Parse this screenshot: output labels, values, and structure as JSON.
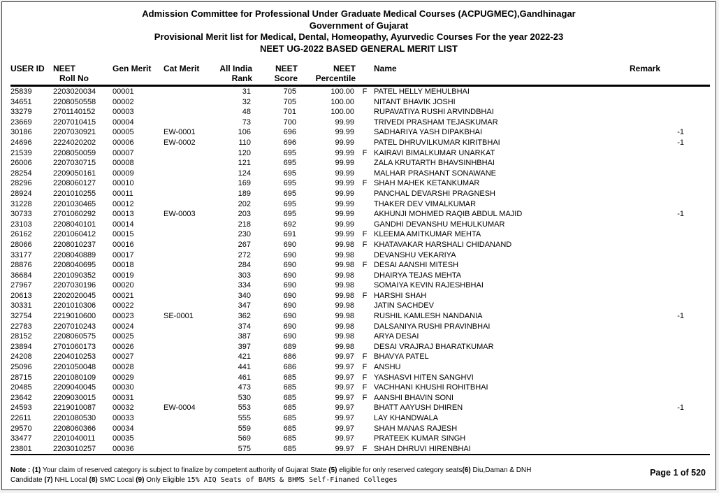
{
  "colors": {
    "text": "#000000",
    "background": "#ffffff",
    "page_border": "#3a3a3a",
    "rule": "#000000"
  },
  "page": {
    "titles": [
      "Admission Committee for Professional Under Graduate Medical Courses (ACPUGMEC),Gandhinagar",
      "Government of Gujarat",
      "Provisional Merit list for Medical, Dental, Homeopathy, Ayurvedic Courses For the year 2022-23",
      "NEET UG-2022 BASED GENERAL MERIT LIST"
    ],
    "footer": {
      "page_label": "Page 1 of 520",
      "note_lines": [
        [
          {
            "t": "Note : ",
            "s": "b"
          },
          {
            "t": "(1)",
            "s": "b"
          },
          {
            "t": " Your claim of reserved category is subject to finalize by competent authority of Gujarat State  ",
            "s": ""
          },
          {
            "t": "(5)",
            "s": "b"
          },
          {
            "t": " eligible for only reserved category seats",
            "s": ""
          },
          {
            "t": "(6)",
            "s": "b"
          },
          {
            "t": " Diu,Daman & DNH",
            "s": ""
          }
        ],
        [
          {
            "t": "Candidate ",
            "s": ""
          },
          {
            "t": "(7)",
            "s": "b"
          },
          {
            "t": " NHL Local ",
            "s": ""
          },
          {
            "t": "(8)",
            "s": "b"
          },
          {
            "t": " SMC Local ",
            "s": ""
          },
          {
            "t": "(9)",
            "s": "b"
          },
          {
            "t": " Only Eligible ",
            "s": ""
          },
          {
            "t": "15% AIQ Seats of BAMS & BHMS Self-Finaned Colleges",
            "s": "m"
          }
        ]
      ]
    }
  },
  "table": {
    "headers": [
      {
        "l1": "USER ID",
        "l2": ""
      },
      {
        "l1": "NEET",
        "l2": "Roll No"
      },
      {
        "l1": "Gen Merit",
        "l2": ""
      },
      {
        "l1": "Cat Merit",
        "l2": ""
      },
      {
        "l1": "All India",
        "l2": "Rank"
      },
      {
        "l1": "NEET",
        "l2": "Score"
      },
      {
        "l1": "NEET",
        "l2": "Percentile"
      },
      {
        "l1": "",
        "l2": ""
      },
      {
        "l1": "Name",
        "l2": ""
      },
      {
        "l1": "Remark",
        "l2": ""
      }
    ],
    "rows": [
      [
        "25839",
        "2203020034",
        "00001",
        "",
        "31",
        "705",
        "100.00",
        "F",
        "PATEL HELLY MEHULBHAI",
        ""
      ],
      [
        "34651",
        "2208050558",
        "00002",
        "",
        "32",
        "705",
        "100.00",
        "",
        "NITANT BHAVIK JOSHI",
        ""
      ],
      [
        "33279",
        "2701140152",
        "00003",
        "",
        "48",
        "701",
        "100.00",
        "",
        "RUPAVATIYA  RUSHI ARVINDBHAI",
        ""
      ],
      [
        "23669",
        "2207010415",
        "00004",
        "",
        "73",
        "700",
        "99.99",
        "",
        "TRIVEDI PRASHAM TEJASKUMAR",
        ""
      ],
      [
        "30186",
        "2207030921",
        "00005",
        "EW-0001",
        "106",
        "696",
        "99.99",
        "",
        "SADHARIYA YASH DIPAKBHAI",
        "-1"
      ],
      [
        "24696",
        "2224020202",
        "00006",
        "EW-0002",
        "110",
        "696",
        "99.99",
        "",
        "PATEL DHRUVILKUMAR KIRITBHAI",
        "-1"
      ],
      [
        "21539",
        "2208050059",
        "00007",
        "",
        "120",
        "695",
        "99.99",
        "F",
        "KAIRAVI BIMALKUMAR UNARKAT",
        ""
      ],
      [
        "26006",
        "2207030715",
        "00008",
        "",
        "121",
        "695",
        "99.99",
        "",
        "ZALA KRUTARTH BHAVSINHBHAI",
        ""
      ],
      [
        "28254",
        "2209050161",
        "00009",
        "",
        "124",
        "695",
        "99.99",
        "",
        "MALHAR PRASHANT SONAWANE",
        ""
      ],
      [
        "28296",
        "2208060127",
        "00010",
        "",
        "169",
        "695",
        "99.99",
        "F",
        "SHAH MAHEK KETANKUMAR",
        ""
      ],
      [
        "28924",
        "2201010255",
        "00011",
        "",
        "189",
        "695",
        "99.99",
        "",
        "PANCHAL DEVARSHI PRAGNESH",
        ""
      ],
      [
        "31228",
        "2201030465",
        "00012",
        "",
        "202",
        "695",
        "99.99",
        "",
        "THAKER DEV VIMALKUMAR",
        ""
      ],
      [
        "30733",
        "2701060292",
        "00013",
        "EW-0003",
        "203",
        "695",
        "99.99",
        "",
        "AKHUNJI MOHMED RAQIB ABDUL MAJID",
        "-1"
      ],
      [
        "23103",
        "2208040101",
        "00014",
        "",
        "218",
        "692",
        "99.99",
        "",
        "GANDHI DEVANSHU MEHULKUMAR",
        ""
      ],
      [
        "26162",
        "2201060412",
        "00015",
        "",
        "230",
        "691",
        "99.99",
        "F",
        "KLEEMA AMITKUMAR MEHTA",
        ""
      ],
      [
        "28066",
        "2208010237",
        "00016",
        "",
        "267",
        "690",
        "99.98",
        "F",
        "KHATAVAKAR HARSHALI CHIDANAND",
        ""
      ],
      [
        "33177",
        "2208040889",
        "00017",
        "",
        "272",
        "690",
        "99.98",
        "",
        "DEVANSHU VEKARIYA",
        ""
      ],
      [
        "28876",
        "2208040695",
        "00018",
        "",
        "284",
        "690",
        "99.98",
        "F",
        "DESAI AANSHI MITESH",
        ""
      ],
      [
        "36684",
        "2201090352",
        "00019",
        "",
        "303",
        "690",
        "99.98",
        "",
        "DHAIRYA TEJAS MEHTA",
        ""
      ],
      [
        "27967",
        "2207030196",
        "00020",
        "",
        "334",
        "690",
        "99.98",
        "",
        "SOMAIYA KEVIN RAJESHBHAI",
        ""
      ],
      [
        "20613",
        "2202020045",
        "00021",
        "",
        "340",
        "690",
        "99.98",
        "F",
        "HARSHI SHAH",
        ""
      ],
      [
        "30331",
        "2201010306",
        "00022",
        "",
        "347",
        "690",
        "99.98",
        "",
        "JATIN SACHDEV",
        ""
      ],
      [
        "32754",
        "2219010600",
        "00023",
        "SE-0001",
        "362",
        "690",
        "99.98",
        "",
        "RUSHIL KAMLESH NANDANIA",
        "-1"
      ],
      [
        "22783",
        "2207010243",
        "00024",
        "",
        "374",
        "690",
        "99.98",
        "",
        "DALSANIYA RUSHI PRAVINBHAI",
        ""
      ],
      [
        "28152",
        "2208060575",
        "00025",
        "",
        "387",
        "690",
        "99.98",
        "",
        "ARYA DESAI",
        ""
      ],
      [
        "23894",
        "2701060173",
        "00026",
        "",
        "397",
        "689",
        "99.98",
        "",
        "DESAI VRAJRAJ BHARATKUMAR",
        ""
      ],
      [
        "24208",
        "2204010253",
        "00027",
        "",
        "421",
        "686",
        "99.97",
        "F",
        "BHAVYA PATEL",
        ""
      ],
      [
        "25096",
        "2201050048",
        "00028",
        "",
        "441",
        "686",
        "99.97",
        "F",
        "ANSHU",
        ""
      ],
      [
        "28715",
        "2201080109",
        "00029",
        "",
        "461",
        "685",
        "99.97",
        "F",
        "YASHASVI HITEN SANGHVI",
        ""
      ],
      [
        "20485",
        "2209040045",
        "00030",
        "",
        "473",
        "685",
        "99.97",
        "F",
        "VACHHANI KHUSHI ROHITBHAI",
        ""
      ],
      [
        "23642",
        "2209030015",
        "00031",
        "",
        "530",
        "685",
        "99.97",
        "F",
        "AANSHI BHAVIN SONI",
        ""
      ],
      [
        "24593",
        "2219010087",
        "00032",
        "EW-0004",
        "553",
        "685",
        "99.97",
        "",
        "BHATT AAYUSH DHIREN",
        "-1"
      ],
      [
        "22611",
        "2201080530",
        "00033",
        "",
        "555",
        "685",
        "99.97",
        "",
        "LAY KHANDWALA",
        ""
      ],
      [
        "29570",
        "2208060366",
        "00034",
        "",
        "559",
        "685",
        "99.97",
        "",
        "SHAH MANAS RAJESH",
        ""
      ],
      [
        "33477",
        "2201040011",
        "00035",
        "",
        "569",
        "685",
        "99.97",
        "",
        "PRATEEK KUMAR SINGH",
        ""
      ],
      [
        "23801",
        "2203010257",
        "00036",
        "",
        "575",
        "685",
        "99.97",
        "F",
        "SHAH DHRUVI HIRENBHAI",
        ""
      ]
    ]
  }
}
